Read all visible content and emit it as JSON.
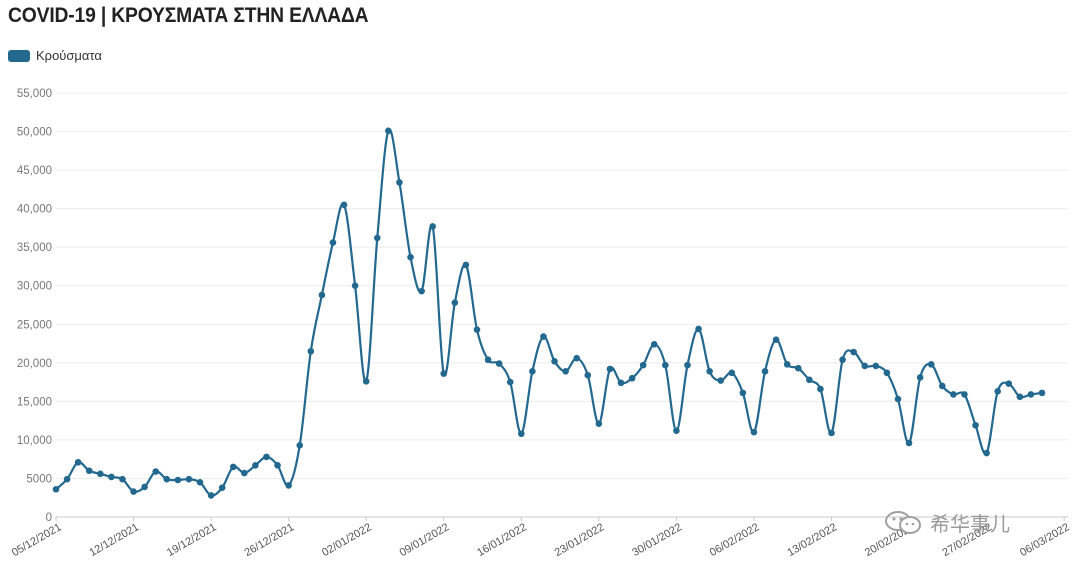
{
  "title": "COVID-19 | ΚΡΟΥΣΜΑΤΑ ΣΤΗΝ ΕΛΛΑΔΑ",
  "watermark": "希华事儿",
  "chart_data": {
    "type": "line",
    "title": "COVID-19 | ΚΡΟΥΣΜΑΤΑ ΣΤΗΝ ΕΛΛΑΔΑ",
    "xlabel": "",
    "ylabel": "",
    "ylim": [
      0,
      55000
    ],
    "yticks": [
      0,
      5000,
      10000,
      15000,
      20000,
      25000,
      30000,
      35000,
      40000,
      45000,
      50000,
      55000
    ],
    "ytick_labels": [
      "0",
      "5000",
      "10,000",
      "15,000",
      "20,000",
      "25,000",
      "30,000",
      "35,000",
      "40,000",
      "45,000",
      "50,000",
      "55,000"
    ],
    "x_start": "05/12/2021",
    "xtick_labels": [
      "05/12/2021",
      "12/12/2021",
      "19/12/2021",
      "26/12/2021",
      "02/01/2022",
      "09/01/2022",
      "16/01/2022",
      "23/01/2022",
      "30/01/2022",
      "06/02/2022",
      "13/02/2022",
      "20/02/2022",
      "27/02/2022",
      "06/03/2022"
    ],
    "grid": true,
    "legend_position": "top-left",
    "series": [
      {
        "name": "Κρούσματα",
        "color": "#23688f",
        "values": [
          3600,
          4900,
          7100,
          6000,
          5600,
          5200,
          4900,
          3300,
          3900,
          5900,
          4900,
          4800,
          4900,
          4500,
          2800,
          3800,
          6500,
          5700,
          6700,
          7800,
          6700,
          4100,
          9300,
          21500,
          28800,
          35600,
          40500,
          30000,
          17600,
          36200,
          50100,
          43400,
          33700,
          29300,
          37700,
          18600,
          27800,
          32700,
          24300,
          20400,
          19900,
          17500,
          10800,
          18900,
          23400,
          20200,
          18900,
          20600,
          18400,
          12100,
          19200,
          17400,
          18000,
          19700,
          22400,
          19700,
          11200,
          19700,
          24400,
          18900,
          17700,
          18700,
          16100,
          11000,
          18900,
          23000,
          19800,
          19300,
          17800,
          16600,
          10900,
          20400,
          21400,
          19600,
          19600,
          18700,
          15300,
          9600,
          18100,
          19800,
          17000,
          15900,
          15900,
          11900,
          8300,
          16300,
          17300,
          15600,
          15900,
          16100
        ]
      }
    ]
  }
}
